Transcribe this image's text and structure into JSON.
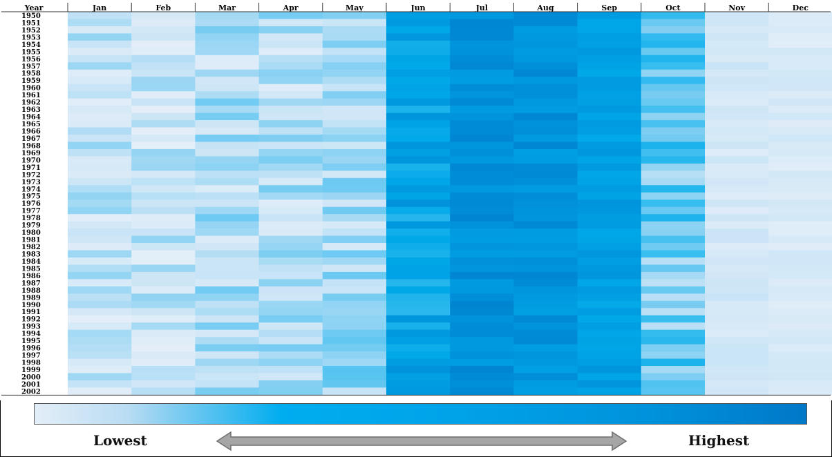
{
  "chart_data": {
    "type": "heatmap",
    "corner_label": "Year",
    "columns": [
      "Jan",
      "Feb",
      "Mar",
      "Apr",
      "May",
      "Jun",
      "Jul",
      "Aug",
      "Sep",
      "Oct",
      "Nov",
      "Dec"
    ],
    "rows": [
      "1950",
      "1951",
      "1952",
      "1953",
      "1954",
      "1955",
      "1956",
      "1957",
      "1958",
      "1959",
      "1960",
      "1961",
      "1962",
      "1963",
      "1964",
      "1965",
      "1966",
      "1967",
      "1968",
      "1969",
      "1970",
      "1971",
      "1972",
      "1973",
      "1974",
      "1975",
      "1976",
      "1977",
      "1978",
      "1979",
      "1980",
      "1981",
      "1982",
      "1983",
      "1984",
      "1985",
      "1986",
      "1987",
      "1988",
      "1989",
      "1990",
      "1991",
      "1992",
      "1993",
      "1994",
      "1995",
      "1996",
      "1997",
      "1998",
      "1999",
      "2000",
      "2001",
      "2002"
    ],
    "value_scale": [
      0,
      10
    ],
    "col_levels": [
      1.2,
      1.3,
      1.8,
      1.7,
      2.3,
      6.2,
      7.6,
      7.4,
      6.6,
      3.5,
      0.9,
      0.6
    ],
    "col_spread": [
      1.4,
      1.5,
      1.5,
      1.4,
      1.6,
      1.3,
      0.9,
      0.9,
      0.7,
      1.8,
      0.6,
      0.5
    ],
    "colors": {
      "lowest": "#e3eef8",
      "low_mid": "#5cc3f0",
      "mid": "#00adef",
      "highest": "#0078c8",
      "header_bg": "#ffffff",
      "border": "#000000"
    },
    "legend": {
      "low_label": "Lowest",
      "high_label": "Highest",
      "placement": "bottom"
    }
  }
}
